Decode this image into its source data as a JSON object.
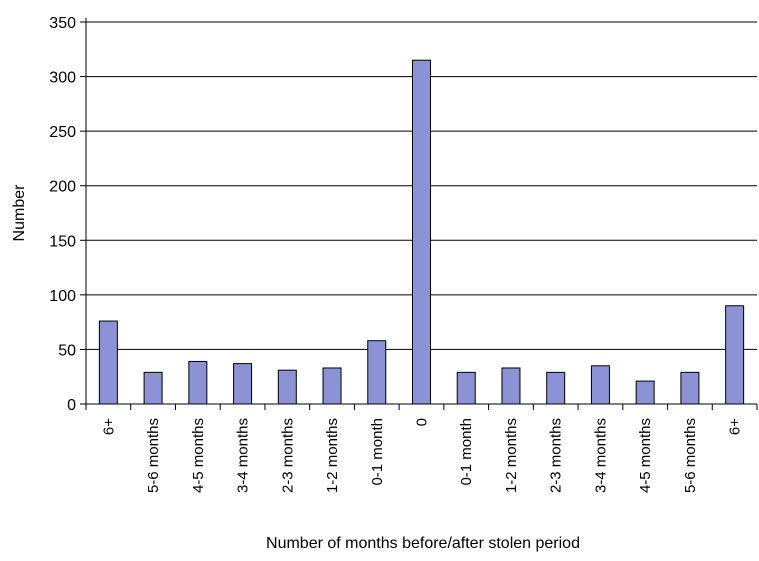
{
  "chart_data": {
    "type": "bar",
    "title": "",
    "xlabel": "Number of months before/after stolen period",
    "ylabel": "Number",
    "categories": [
      "6+",
      "5-6 months",
      "4-5 months",
      "3-4 months",
      "2-3 months",
      "1-2 months",
      "0-1 month",
      "0",
      "0-1 month",
      "1-2 months",
      "2-3 months",
      "3-4 months",
      "4-5 months",
      "5-6 months",
      "6+"
    ],
    "values": [
      76,
      29,
      39,
      37,
      31,
      33,
      58,
      315,
      29,
      33,
      29,
      35,
      21,
      29,
      90
    ],
    "ylim": [
      0,
      350
    ],
    "yticks": [
      0,
      50,
      100,
      150,
      200,
      250,
      300,
      350
    ],
    "grid": true,
    "legend": "none",
    "bar_color": "#8b93d6",
    "bar_stroke": "#000000"
  }
}
